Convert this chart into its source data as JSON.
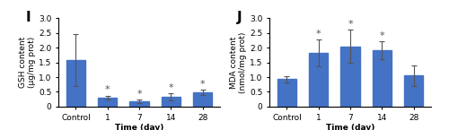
{
  "panel_I": {
    "label": "I",
    "categories": [
      "Control",
      "1",
      "7",
      "14",
      "28"
    ],
    "values": [
      1.58,
      0.3,
      0.17,
      0.33,
      0.48
    ],
    "errors": [
      0.87,
      0.07,
      0.06,
      0.12,
      0.1
    ],
    "ylabel": "GSH content\n(μg/mg prot)",
    "xlabel": "Time (day)",
    "ylim": [
      0,
      3.0
    ],
    "yticks": [
      0.0,
      0.5,
      1.0,
      1.5,
      2.0,
      2.5,
      3.0
    ],
    "significance": [
      false,
      true,
      true,
      true,
      true
    ]
  },
  "panel_J": {
    "label": "J",
    "categories": [
      "Control",
      "1",
      "7",
      "14",
      "28"
    ],
    "values": [
      0.93,
      1.82,
      2.05,
      1.92,
      1.05
    ],
    "errors": [
      0.1,
      0.45,
      0.55,
      0.3,
      0.35
    ],
    "ylabel": "MDA content\n(nmol/mg prot)",
    "xlabel": "Time (day)",
    "ylim": [
      0,
      3.0
    ],
    "yticks": [
      0.0,
      0.5,
      1.0,
      1.5,
      2.0,
      2.5,
      3.0
    ],
    "significance": [
      false,
      true,
      true,
      true,
      false
    ]
  },
  "bar_color": "#4472C4",
  "bar_width": 0.6,
  "error_color": "#555555",
  "star_color": "#555555",
  "background_color": "#ffffff",
  "label_fontsize": 6.5,
  "tick_fontsize": 6.5,
  "panel_label_fontsize": 11,
  "star_fontsize": 8,
  "capsize": 2.0
}
